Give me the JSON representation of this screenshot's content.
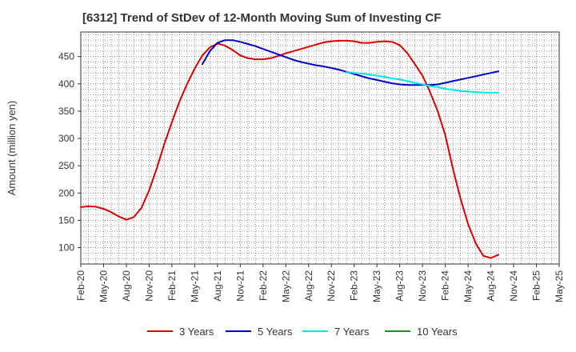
{
  "chart_data": {
    "type": "line",
    "title": "[6312]  Trend of StDev of 12-Month Moving Sum of Investing CF",
    "ylabel": "Amount (million yen)",
    "xlabel": "",
    "ylim": [
      70,
      495
    ],
    "yticks": [
      100,
      150,
      200,
      250,
      300,
      350,
      400,
      450
    ],
    "categories": [
      "Feb-20",
      "May-20",
      "Aug-20",
      "Nov-20",
      "Feb-21",
      "May-21",
      "Aug-21",
      "Nov-21",
      "Feb-22",
      "May-22",
      "Aug-22",
      "Nov-22",
      "Feb-23",
      "May-23",
      "Aug-23",
      "Nov-23",
      "Feb-24",
      "May-24",
      "Aug-24",
      "Nov-24",
      "Feb-25",
      "May-25"
    ],
    "grid": true,
    "legend_position": "bottom",
    "series": [
      {
        "name": "3 Years",
        "color": "#dd0000",
        "points": [
          [
            0,
            174
          ],
          [
            1,
            176
          ],
          [
            2,
            175
          ],
          [
            3,
            171
          ],
          [
            4,
            165
          ],
          [
            5,
            157
          ],
          [
            6,
            151
          ],
          [
            7,
            156
          ],
          [
            8,
            173
          ],
          [
            9,
            205
          ],
          [
            10,
            245
          ],
          [
            11,
            290
          ],
          [
            12,
            330
          ],
          [
            13,
            368
          ],
          [
            14,
            400
          ],
          [
            15,
            428
          ],
          [
            16,
            452
          ],
          [
            17,
            467
          ],
          [
            18,
            474
          ],
          [
            19,
            470
          ],
          [
            20,
            462
          ],
          [
            21,
            452
          ],
          [
            22,
            447
          ],
          [
            23,
            445
          ],
          [
            24,
            445
          ],
          [
            25,
            447
          ],
          [
            26,
            451
          ],
          [
            27,
            456
          ],
          [
            28,
            460
          ],
          [
            29,
            464
          ],
          [
            30,
            468
          ],
          [
            31,
            472
          ],
          [
            32,
            476
          ],
          [
            33,
            478
          ],
          [
            34,
            479
          ],
          [
            35,
            479
          ],
          [
            36,
            478
          ],
          [
            37,
            475
          ],
          [
            38,
            475
          ],
          [
            39,
            477
          ],
          [
            40,
            478
          ],
          [
            41,
            477
          ],
          [
            42,
            471
          ],
          [
            43,
            456
          ],
          [
            44,
            436
          ],
          [
            45,
            415
          ],
          [
            46,
            385
          ],
          [
            47,
            350
          ],
          [
            48,
            306
          ],
          [
            49,
            245
          ],
          [
            50,
            190
          ],
          [
            51,
            143
          ],
          [
            52,
            108
          ],
          [
            53,
            85
          ],
          [
            54,
            81
          ],
          [
            55,
            87
          ]
        ]
      },
      {
        "name": "5 Years",
        "color": "#0000cc",
        "points": [
          [
            16,
            436
          ],
          [
            17,
            460
          ],
          [
            18,
            475
          ],
          [
            19,
            480
          ],
          [
            20,
            480
          ],
          [
            21,
            477
          ],
          [
            22,
            473
          ],
          [
            23,
            469
          ],
          [
            24,
            464
          ],
          [
            25,
            459
          ],
          [
            26,
            454
          ],
          [
            27,
            449
          ],
          [
            28,
            444
          ],
          [
            29,
            440
          ],
          [
            30,
            437
          ],
          [
            31,
            434
          ],
          [
            32,
            432
          ],
          [
            33,
            429
          ],
          [
            34,
            426
          ],
          [
            35,
            422
          ],
          [
            36,
            418
          ],
          [
            37,
            414
          ],
          [
            38,
            410
          ],
          [
            39,
            407
          ],
          [
            40,
            404
          ],
          [
            41,
            401
          ],
          [
            42,
            399
          ],
          [
            43,
            398
          ],
          [
            44,
            398
          ],
          [
            45,
            398
          ],
          [
            46,
            398
          ],
          [
            47,
            399
          ],
          [
            48,
            402
          ],
          [
            49,
            405
          ],
          [
            50,
            408
          ],
          [
            51,
            411
          ],
          [
            52,
            414
          ],
          [
            53,
            417
          ],
          [
            54,
            420
          ],
          [
            55,
            423
          ]
        ]
      },
      {
        "name": "7 Years",
        "color": "#00e5ee",
        "points": [
          [
            35,
            422
          ],
          [
            36,
            420
          ],
          [
            37,
            419
          ],
          [
            38,
            417
          ],
          [
            39,
            415
          ],
          [
            40,
            413
          ],
          [
            41,
            410
          ],
          [
            42,
            408
          ],
          [
            43,
            405
          ],
          [
            44,
            402
          ],
          [
            45,
            399
          ],
          [
            46,
            396
          ],
          [
            47,
            394
          ],
          [
            48,
            391
          ],
          [
            49,
            389
          ],
          [
            50,
            387
          ],
          [
            51,
            386
          ],
          [
            52,
            385
          ],
          [
            53,
            384
          ],
          [
            54,
            384
          ],
          [
            55,
            384
          ]
        ]
      },
      {
        "name": "10 Years",
        "color": "#228822",
        "points": []
      }
    ]
  }
}
